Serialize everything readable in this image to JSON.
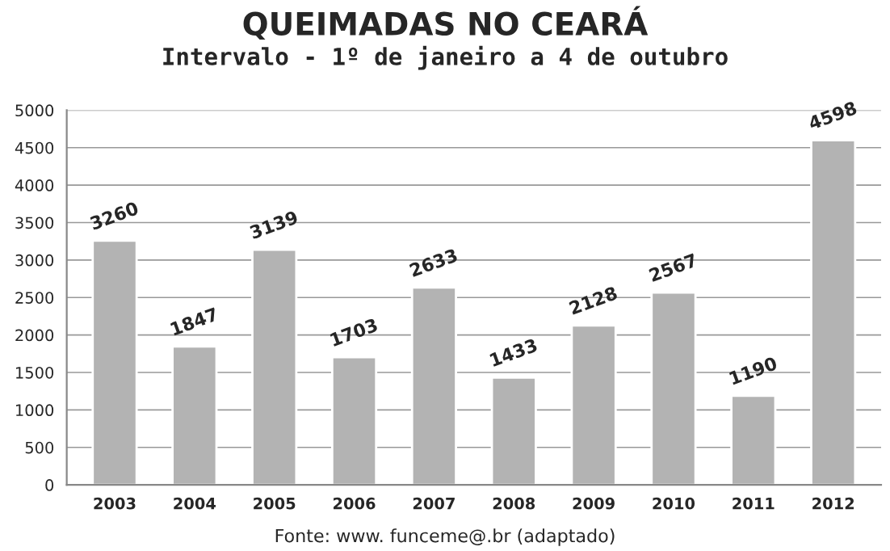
{
  "chart_data": {
    "type": "bar",
    "title": "QUEIMADAS NO CEARÁ",
    "subtitle": "Intervalo - 1º de janeiro a 4 de outubro",
    "categories": [
      "2003",
      "2004",
      "2005",
      "2006",
      "2007",
      "2008",
      "2009",
      "2010",
      "2011",
      "2012"
    ],
    "values": [
      3260,
      1847,
      3139,
      1703,
      2633,
      1433,
      2128,
      2567,
      1190,
      4598
    ],
    "color": "#b3b3b3",
    "data_labels": true,
    "grid": "y",
    "ylim": [
      0,
      5000
    ],
    "yticks": [
      0,
      500,
      1000,
      1500,
      2000,
      2500,
      3000,
      3500,
      4000,
      4500,
      5000
    ],
    "annotations": [
      "Fonte: www. funceme@.br (adaptado)"
    ]
  }
}
